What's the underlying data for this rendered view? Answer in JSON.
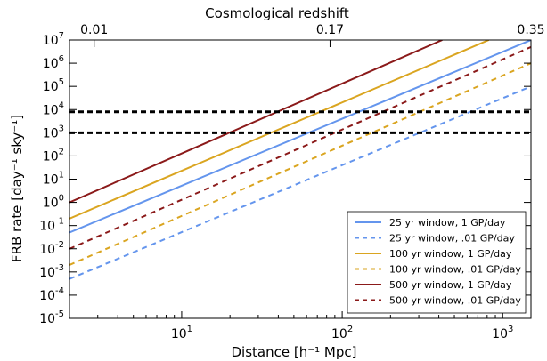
{
  "chart_data": {
    "type": "line",
    "xlabel": "Distance [h⁻¹ Mpc]",
    "ylabel": "FRB rate [day⁻¹ sky⁻¹]",
    "top_axis_label": "Cosmological redshift",
    "x_scale": "log",
    "y_scale": "log",
    "xlim": [
      2,
      1500
    ],
    "ylim": [
      1e-05,
      10000000
    ],
    "grid": false,
    "legend_position": "lower-right",
    "x_ticks": [
      {
        "value": 10,
        "label": "10",
        "exp": "1"
      },
      {
        "value": 100,
        "label": "10",
        "exp": "2"
      },
      {
        "value": 1000,
        "label": "10",
        "exp": "3"
      }
    ],
    "y_ticks": [
      {
        "value": 1e-05,
        "label": "10",
        "exp": "-5"
      },
      {
        "value": 0.0001,
        "label": "10",
        "exp": "-4"
      },
      {
        "value": 0.001,
        "label": "10",
        "exp": "-3"
      },
      {
        "value": 0.01,
        "label": "10",
        "exp": "-2"
      },
      {
        "value": 0.1,
        "label": "10",
        "exp": "-1"
      },
      {
        "value": 1,
        "label": "10",
        "exp": "0"
      },
      {
        "value": 10,
        "label": "10",
        "exp": "1"
      },
      {
        "value": 100,
        "label": "10",
        "exp": "2"
      },
      {
        "value": 1000,
        "label": "10",
        "exp": "3"
      },
      {
        "value": 10000,
        "label": "10",
        "exp": "4"
      },
      {
        "value": 100000,
        "label": "10",
        "exp": "5"
      },
      {
        "value": 1000000,
        "label": "10",
        "exp": "6"
      },
      {
        "value": 10000000,
        "label": "10",
        "exp": "7"
      }
    ],
    "top_ticks": [
      {
        "distance": 2.85,
        "label": "0.01"
      },
      {
        "distance": 84,
        "label": "0.17"
      },
      {
        "distance": 1500,
        "label": "0.35"
      }
    ],
    "series": [
      {
        "name": "25 yr window, 1 GP/day",
        "color": "#6495ed",
        "dash": "solid",
        "x": [
          2,
          1500
        ],
        "y": [
          0.05,
          10000000
        ]
      },
      {
        "name": "25 yr window, .01 GP/day",
        "color": "#6495ed",
        "dash": "dashed",
        "x": [
          2,
          1500
        ],
        "y": [
          0.0005,
          100000
        ]
      },
      {
        "name": "100 yr window, 1 GP/day",
        "color": "#daa520",
        "dash": "solid",
        "x": [
          2,
          820
        ],
        "y": [
          0.2,
          10000000
        ]
      },
      {
        "name": "100 yr window, .01 GP/day",
        "color": "#daa520",
        "dash": "dashed",
        "x": [
          2,
          1500
        ],
        "y": [
          0.002,
          1000000
        ]
      },
      {
        "name": "500 yr window, 1 GP/day",
        "color": "#8b1a1a",
        "dash": "solid",
        "x": [
          2,
          420
        ],
        "y": [
          1,
          10000000
        ]
      },
      {
        "name": "500 yr window, .01 GP/day",
        "color": "#8b1a1a",
        "dash": "dashed",
        "x": [
          2,
          1500
        ],
        "y": [
          0.01,
          5000000
        ]
      }
    ],
    "hlines": [
      {
        "y": 8000,
        "color": "#000000",
        "dash": "dashed"
      },
      {
        "y": 1000,
        "color": "#000000",
        "dash": "dashed"
      }
    ]
  }
}
